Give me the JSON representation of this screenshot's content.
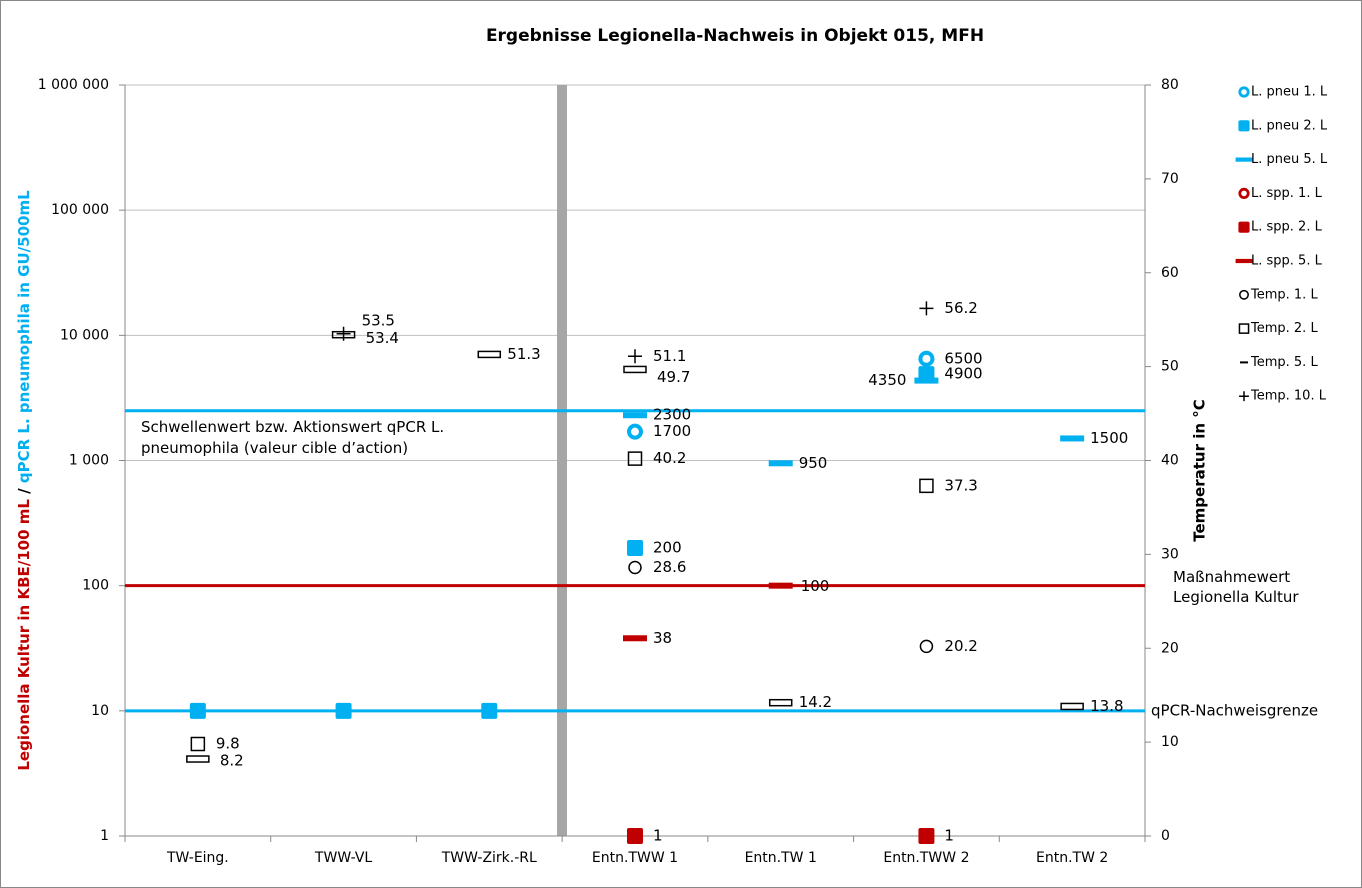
{
  "chart_data": {
    "type": "scatter",
    "title": "Ergebnisse Legionella-Nachweis in Objekt 015, MFH",
    "ylabel_parts": [
      {
        "text": "Legionella Kultur in KBE/100 mL",
        "color": "#c00000"
      },
      {
        "text": " / ",
        "color": "#000000"
      },
      {
        "text": "qPCR L. pneumophila in GU/500mL",
        "color": "#00b0f0"
      }
    ],
    "y2label": "Temperatur in °C",
    "categories": [
      "TW-Eing.",
      "TWW-VL",
      "TWW-Zirk.-RL",
      "Entn.TWW 1",
      "Entn.TW 1",
      "Entn.TWW 2",
      "Entn.TW 2"
    ],
    "ylog": true,
    "ylim": [
      1,
      1000000
    ],
    "yticks": [
      1,
      10,
      100,
      {
        "value": 1000,
        "label": "1 000"
      },
      {
        "value": 10000,
        "label": "10 000"
      },
      {
        "value": 100000,
        "label": "100 000"
      },
      {
        "value": 1000000,
        "label": "1 000 000"
      }
    ],
    "y2lim": [
      0,
      80
    ],
    "y2ticks": [
      0,
      10,
      20,
      30,
      40,
      50,
      60,
      70,
      80
    ],
    "grid": true,
    "legend": "right",
    "series": [
      {
        "name": "L.  pneu 1. L",
        "color": "#00b0f0",
        "marker": "ring",
        "values": [
          null,
          null,
          null,
          1700,
          null,
          6500,
          null
        ]
      },
      {
        "name": "L.  pneu 2. L",
        "color": "#00b0f0",
        "marker": "square",
        "values": [
          10,
          10,
          10,
          200,
          null,
          4900,
          null
        ],
        "value_labels": [
          null,
          null,
          null,
          "200",
          null,
          "4900",
          null
        ]
      },
      {
        "name": "L.  pneu 5. L",
        "color": "#00b0f0",
        "marker": "dash",
        "values": [
          null,
          null,
          null,
          2300,
          950,
          4350,
          1500
        ]
      },
      {
        "name": "L.  spp. 1. L",
        "color": "#c00000",
        "marker": "ring",
        "values": [
          null,
          null,
          null,
          null,
          null,
          null,
          null
        ]
      },
      {
        "name": "L.  spp. 2. L",
        "color": "#c00000",
        "marker": "square",
        "values": [
          null,
          null,
          null,
          1,
          null,
          1,
          null
        ]
      },
      {
        "name": "L.  spp. 5. L",
        "color": "#c00000",
        "marker": "dash",
        "values": [
          null,
          null,
          null,
          38,
          100,
          null,
          null
        ]
      },
      {
        "name": "Temp. 1. L",
        "color": "#000000",
        "marker": "open-circle",
        "axis": "y2",
        "values": [
          null,
          null,
          null,
          28.6,
          null,
          20.2,
          null
        ]
      },
      {
        "name": "Temp. 2. L",
        "color": "#000000",
        "marker": "open-square",
        "axis": "y2",
        "values": [
          9.8,
          null,
          null,
          40.2,
          null,
          37.3,
          null
        ]
      },
      {
        "name": "Temp. 5. L",
        "color": "#000000",
        "marker": "open-dash",
        "axis": "y2",
        "values": [
          8.2,
          53.4,
          51.3,
          49.7,
          14.2,
          null,
          13.8
        ]
      },
      {
        "name": "Temp. 10. L",
        "color": "#000000",
        "marker": "plus",
        "axis": "y2",
        "values": [
          null,
          53.5,
          null,
          51.1,
          null,
          56.2,
          null
        ]
      }
    ],
    "reference_lines": [
      {
        "value": 2500,
        "color": "#00b0f0",
        "label_lines": [
          "Schwellenwert bzw. Aktionswert qPCR L.",
          "pneumophila (valeur cible d’action)"
        ],
        "label_position": "inside-left",
        "label_color": "#00b0f0"
      },
      {
        "value": 100,
        "color": "#c00000",
        "label_lines": [
          "Maßnahmewert",
          "Legionella Kultur"
        ],
        "label_position": "right-below",
        "label_color": "#000000"
      },
      {
        "value": 10,
        "color": "#00b0f0",
        "label_lines": [
          "qPCR-Nachweisgrenze"
        ],
        "label_position": "right",
        "label_color": "#000000"
      }
    ]
  }
}
